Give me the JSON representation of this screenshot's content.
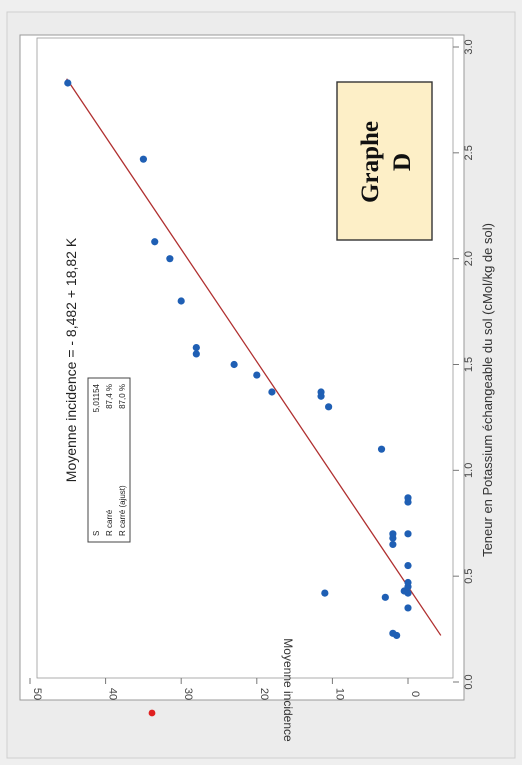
{
  "chart_data": {
    "type": "scatter",
    "title": "Moyenne incidence = - 8,482 + 18,82 K",
    "xlabel": "Teneur en Potassium échangeable du sol (cMol/kg de sol)",
    "ylabel": "Moyenne incidence",
    "xlim": [
      0.0,
      3.0
    ],
    "ylim": [
      -5,
      50
    ],
    "x_ticks": [
      "0.0",
      "0.5",
      "1.0",
      "1.5",
      "2.0",
      "2.5",
      "3.0"
    ],
    "y_ticks": [
      "0",
      "10",
      "20",
      "30",
      "40",
      "50"
    ],
    "grid": false,
    "rotation": "rotated 90 degrees counter-clockwise",
    "fit": {
      "intercept": -8.482,
      "slope": 18.82,
      "color": "#b03030"
    },
    "points": [
      {
        "x": 0.22,
        "y": 1.5
      },
      {
        "x": 0.23,
        "y": 2.0
      },
      {
        "x": 0.35,
        "y": 0.0
      },
      {
        "x": 0.4,
        "y": 3.0
      },
      {
        "x": 0.42,
        "y": 0.0
      },
      {
        "x": 0.42,
        "y": 11.0
      },
      {
        "x": 0.43,
        "y": 0.5
      },
      {
        "x": 0.45,
        "y": 0.0
      },
      {
        "x": 0.47,
        "y": 0.0
      },
      {
        "x": 0.55,
        "y": 0.0
      },
      {
        "x": 0.65,
        "y": 2.0
      },
      {
        "x": 0.68,
        "y": 2.0
      },
      {
        "x": 0.7,
        "y": 2.0
      },
      {
        "x": 0.7,
        "y": 0.0
      },
      {
        "x": 0.85,
        "y": 0.0
      },
      {
        "x": 0.87,
        "y": 0.0
      },
      {
        "x": 1.1,
        "y": 3.5
      },
      {
        "x": 1.3,
        "y": 10.5
      },
      {
        "x": 1.35,
        "y": 11.5
      },
      {
        "x": 1.37,
        "y": 11.5
      },
      {
        "x": 1.37,
        "y": 18.0
      },
      {
        "x": 1.45,
        "y": 20.0
      },
      {
        "x": 1.5,
        "y": 23.0
      },
      {
        "x": 1.55,
        "y": 28.0
      },
      {
        "x": 1.58,
        "y": 28.0
      },
      {
        "x": 1.8,
        "y": 30.0
      },
      {
        "x": 2.0,
        "y": 31.5
      },
      {
        "x": 2.08,
        "y": 33.5
      },
      {
        "x": 2.47,
        "y": 35.0
      },
      {
        "x": 2.83,
        "y": 45.0
      }
    ],
    "point_color": "#1f5fb4",
    "stats": [
      {
        "label": "S",
        "value": "5,01154"
      },
      {
        "label": "R carré",
        "value": "87,4 %"
      },
      {
        "label": "R carré (ajust)",
        "value": "87,0 %"
      }
    ],
    "annotation_box": {
      "line1": "Graphe",
      "line2": "D",
      "fill": "#fdefc7"
    }
  }
}
